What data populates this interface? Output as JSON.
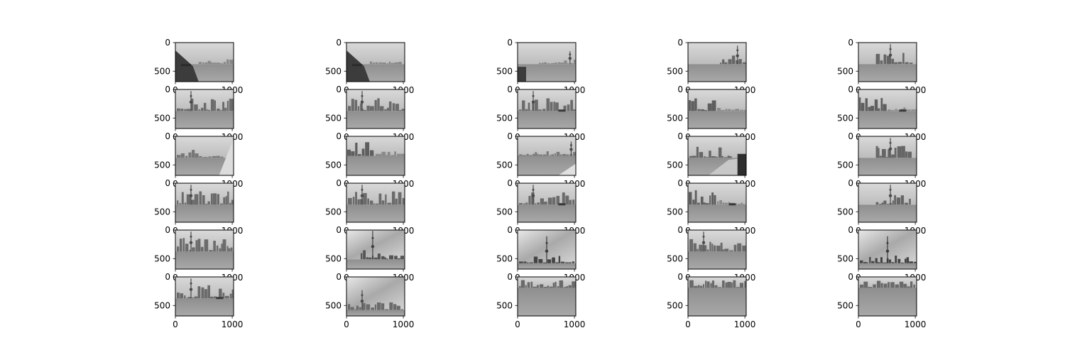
{
  "figure": {
    "rows": 6,
    "cols": 5,
    "image_extent": {
      "width": 1024,
      "height": 683
    },
    "ytick_labels": [
      "0",
      "500"
    ],
    "xtick_labels": [
      "0",
      "1000"
    ],
    "colormap": "gray",
    "tile_scenes": [
      [
        "railing-left",
        "railing-left",
        "railing-small",
        "tower-right",
        "tower-center"
      ],
      [
        "skyline-dense",
        "skyline-dense",
        "skyline-boat",
        "skyline-left",
        "skyline-left-boat"
      ],
      [
        "railing-right",
        "skyline-left-low",
        "tower-far-right",
        "railing-walkway",
        "tower-center"
      ],
      [
        "skyline-dense",
        "skyline-dense",
        "skyline-boat",
        "skyline-left-boat",
        "tower-center"
      ],
      [
        "skyline-far",
        "tower-close",
        "tower-cloudy",
        "skyline-dense",
        "tower-cloudy"
      ],
      [
        "skyline-boat",
        "skyline-cloudy",
        "water-skyline",
        "water-skyline",
        "water-skyline"
      ]
    ]
  }
}
